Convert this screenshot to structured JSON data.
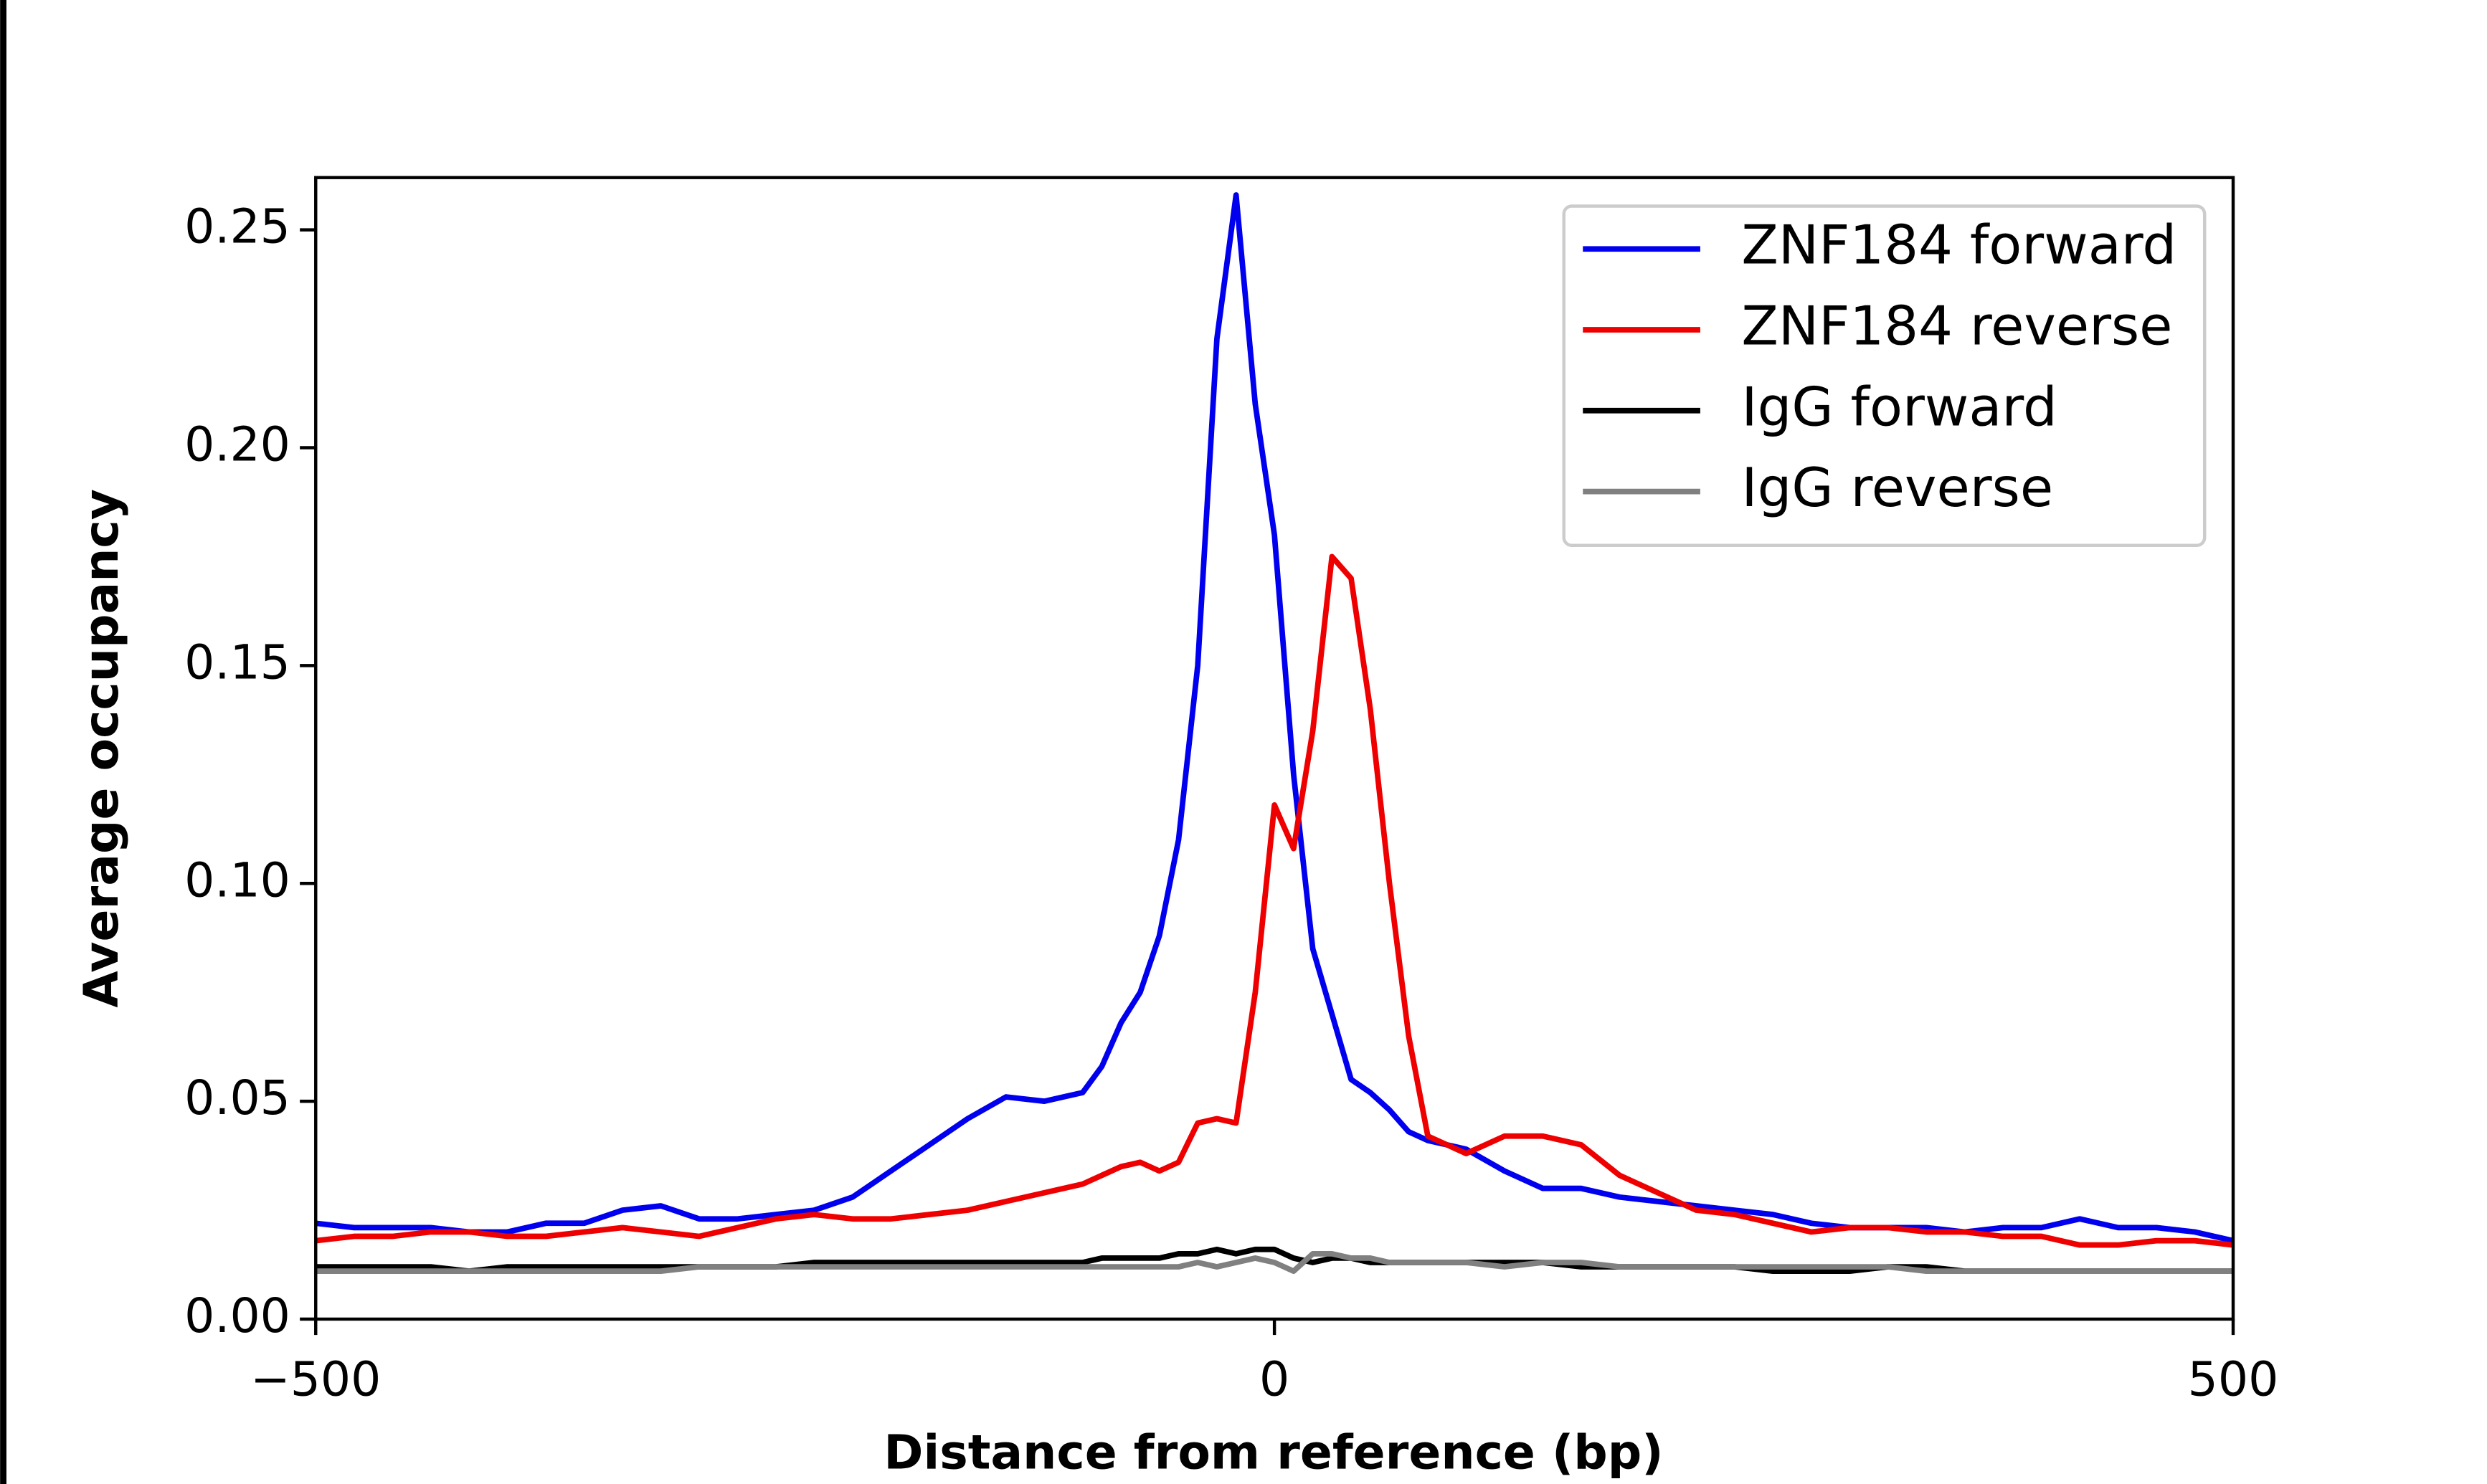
{
  "chart_data": {
    "type": "line",
    "xlabel": "Distance from reference (bp)",
    "ylabel": "Average occupancy",
    "x": [
      -500,
      -480,
      -460,
      -440,
      -420,
      -400,
      -380,
      -360,
      -340,
      -320,
      -300,
      -280,
      -260,
      -240,
      -220,
      -200,
      -180,
      -160,
      -140,
      -120,
      -100,
      -90,
      -80,
      -70,
      -60,
      -50,
      -40,
      -30,
      -20,
      -10,
      0,
      10,
      20,
      30,
      40,
      50,
      60,
      70,
      80,
      90,
      100,
      120,
      140,
      160,
      180,
      200,
      220,
      240,
      260,
      280,
      300,
      320,
      340,
      360,
      380,
      400,
      420,
      440,
      460,
      480,
      500
    ],
    "series": [
      {
        "name": "ZNF184 forward",
        "color": "#0000ee",
        "values": [
          0.022,
          0.021,
          0.021,
          0.021,
          0.02,
          0.02,
          0.022,
          0.022,
          0.025,
          0.026,
          0.023,
          0.023,
          0.024,
          0.025,
          0.028,
          0.034,
          0.04,
          0.046,
          0.051,
          0.05,
          0.052,
          0.058,
          0.068,
          0.075,
          0.088,
          0.11,
          0.15,
          0.225,
          0.258,
          0.21,
          0.18,
          0.125,
          0.085,
          0.07,
          0.055,
          0.052,
          0.048,
          0.043,
          0.041,
          0.04,
          0.039,
          0.034,
          0.03,
          0.03,
          0.028,
          0.027,
          0.026,
          0.025,
          0.024,
          0.022,
          0.021,
          0.021,
          0.021,
          0.02,
          0.021,
          0.021,
          0.023,
          0.021,
          0.021,
          0.02,
          0.018
        ]
      },
      {
        "name": "ZNF184 reverse",
        "color": "#ee0000",
        "values": [
          0.018,
          0.019,
          0.019,
          0.02,
          0.02,
          0.019,
          0.019,
          0.02,
          0.021,
          0.02,
          0.019,
          0.021,
          0.023,
          0.024,
          0.023,
          0.023,
          0.024,
          0.025,
          0.027,
          0.029,
          0.031,
          0.033,
          0.035,
          0.036,
          0.034,
          0.036,
          0.045,
          0.046,
          0.045,
          0.075,
          0.118,
          0.108,
          0.135,
          0.175,
          0.17,
          0.14,
          0.1,
          0.065,
          0.042,
          0.04,
          0.038,
          0.042,
          0.042,
          0.04,
          0.033,
          0.029,
          0.025,
          0.024,
          0.022,
          0.02,
          0.021,
          0.021,
          0.02,
          0.02,
          0.019,
          0.019,
          0.017,
          0.017,
          0.018,
          0.018,
          0.017
        ]
      },
      {
        "name": "IgG forward",
        "color": "#000000",
        "values": [
          0.012,
          0.012,
          0.012,
          0.012,
          0.011,
          0.012,
          0.012,
          0.012,
          0.012,
          0.012,
          0.012,
          0.012,
          0.012,
          0.013,
          0.013,
          0.013,
          0.013,
          0.013,
          0.013,
          0.013,
          0.013,
          0.014,
          0.014,
          0.014,
          0.014,
          0.015,
          0.015,
          0.016,
          0.015,
          0.016,
          0.016,
          0.014,
          0.013,
          0.014,
          0.014,
          0.013,
          0.013,
          0.013,
          0.013,
          0.013,
          0.013,
          0.013,
          0.013,
          0.012,
          0.012,
          0.012,
          0.012,
          0.012,
          0.011,
          0.011,
          0.011,
          0.012,
          0.012,
          0.011,
          0.011,
          0.011,
          0.011,
          0.011,
          0.011,
          0.011,
          0.011
        ]
      },
      {
        "name": "IgG reverse",
        "color": "#808080",
        "values": [
          0.011,
          0.011,
          0.011,
          0.011,
          0.011,
          0.011,
          0.011,
          0.011,
          0.011,
          0.011,
          0.012,
          0.012,
          0.012,
          0.012,
          0.012,
          0.012,
          0.012,
          0.012,
          0.012,
          0.012,
          0.012,
          0.012,
          0.012,
          0.012,
          0.012,
          0.012,
          0.013,
          0.012,
          0.013,
          0.014,
          0.013,
          0.011,
          0.015,
          0.015,
          0.014,
          0.014,
          0.013,
          0.013,
          0.013,
          0.013,
          0.013,
          0.012,
          0.013,
          0.013,
          0.012,
          0.012,
          0.012,
          0.012,
          0.012,
          0.012,
          0.012,
          0.012,
          0.011,
          0.011,
          0.011,
          0.011,
          0.011,
          0.011,
          0.011,
          0.011,
          0.011
        ]
      }
    ],
    "xlim": [
      -500,
      500
    ],
    "xticks": [
      {
        "value": -500,
        "label": "−500"
      },
      0,
      500
    ],
    "ylim": [
      0,
      0.262
    ],
    "yticks": [
      {
        "value": 0,
        "label": "0.00"
      },
      {
        "value": 0.05,
        "label": "0.05"
      },
      {
        "value": 0.1,
        "label": "0.10"
      },
      {
        "value": 0.15,
        "label": "0.15"
      },
      {
        "value": 0.2,
        "label": "0.20"
      },
      {
        "value": 0.25,
        "label": "0.25"
      }
    ],
    "grid": false,
    "legend": "upper right"
  }
}
